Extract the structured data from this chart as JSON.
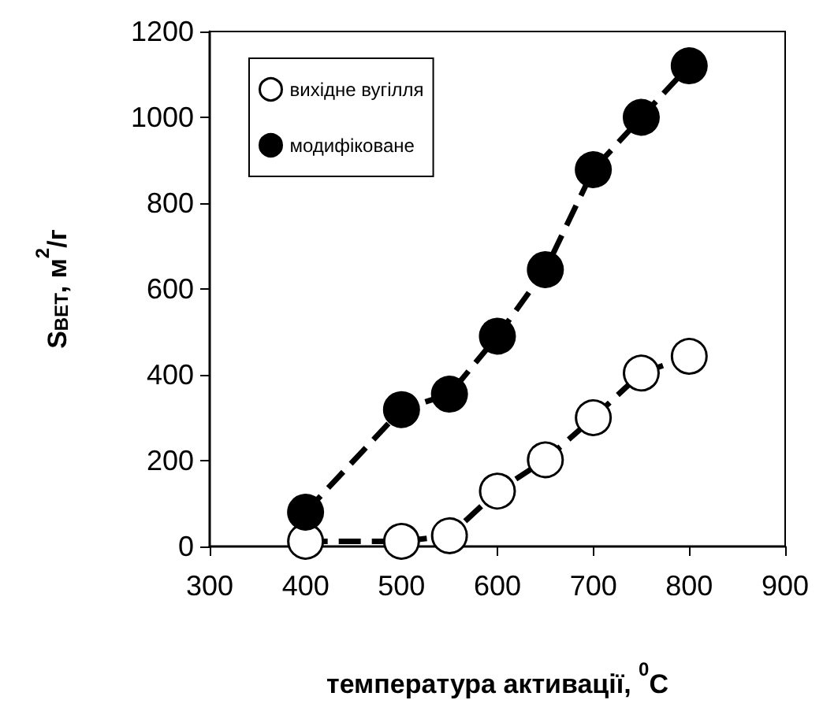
{
  "chart_data": {
    "type": "line",
    "xlabel": "температура активації, $^{0}$C",
    "ylabel": "S$_{BET}$, м$^{2}$/г",
    "x": [
      400,
      500,
      550,
      600,
      650,
      700,
      750,
      800
    ],
    "series": [
      {
        "name": "вихідне вугілля",
        "color": "#ffffff",
        "values": [
          12,
          12,
          25,
          129,
          202,
          300,
          404,
          443
        ]
      },
      {
        "name": "модифіковане",
        "color": "#000000",
        "values": [
          80,
          319,
          355,
          490,
          645,
          878,
          1000,
          1120
        ]
      }
    ],
    "xlim": [
      300,
      900
    ],
    "xticks": [
      300,
      400,
      500,
      600,
      700,
      800,
      900
    ],
    "ylim": [
      0,
      1200
    ],
    "yticks": [
      0,
      200,
      400,
      600,
      800,
      1000,
      1200
    ],
    "grid": false,
    "legend": "top left",
    "marker": "circle",
    "line_style": "dashed"
  }
}
